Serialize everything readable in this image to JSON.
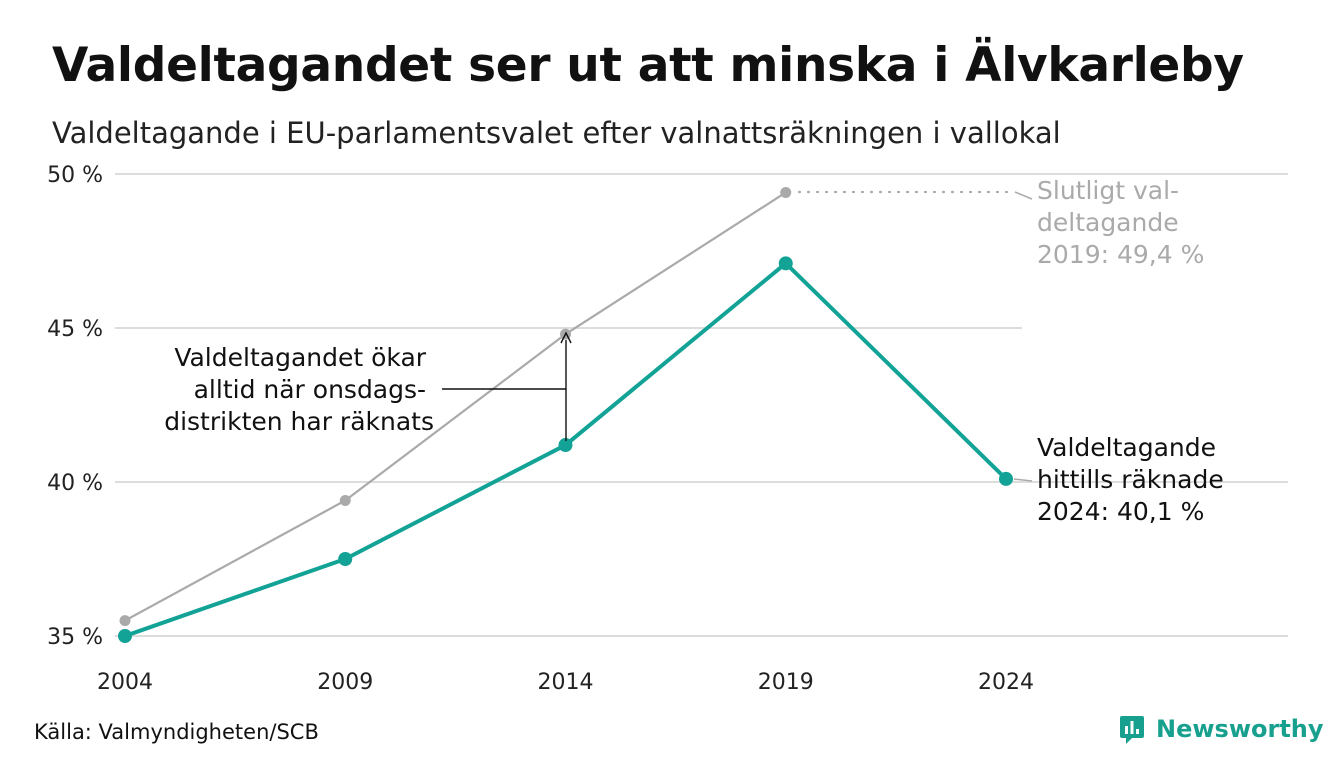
{
  "header": {
    "title": "Valdeltagandet ser ut att minska i Älvkarleby",
    "subtitle": "Valdeltagande i EU-parlamentsvalet efter valnattsräkningen i vallokal"
  },
  "footer": {
    "source": "Källa: Valmyndigheten/SCB",
    "brand": "Newsworthy"
  },
  "annotations": {
    "middle": [
      "Valdeltagandet ökar",
      "alltid när onsdags-",
      "distrikten har räknats"
    ],
    "final_2019": [
      "Slutligt val-",
      "deltagande",
      "2019: 49,4 %"
    ],
    "counted_2024": [
      "Valdeltagande",
      "hittills räknade",
      "2024: 40,1 %"
    ]
  },
  "colors": {
    "current": "#12a396",
    "final": "#aaaaaa",
    "grid": "#dddddd",
    "brand": "#18a08f"
  },
  "chart_data": {
    "type": "line",
    "x": [
      2004,
      2009,
      2014,
      2019,
      2024
    ],
    "x_tick_labels": [
      "2004",
      "2009",
      "2014",
      "2019",
      "2024"
    ],
    "y_ticks": [
      35,
      40,
      45,
      50
    ],
    "y_tick_labels": [
      "35 %",
      "40 %",
      "45 %",
      "50 %"
    ],
    "ylim": [
      35,
      50
    ],
    "grid": true,
    "series": [
      {
        "key": "final",
        "values": [
          35.5,
          39.4,
          44.8,
          49.4,
          null
        ]
      },
      {
        "key": "current",
        "values": [
          35.0,
          37.5,
          41.2,
          47.1,
          40.1
        ]
      }
    ]
  }
}
